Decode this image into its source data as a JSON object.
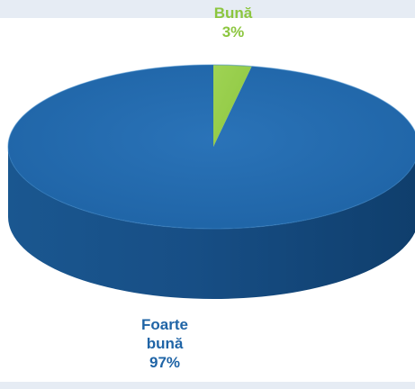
{
  "chart_data": {
    "type": "pie",
    "three_d": true,
    "title": "",
    "legend": "none",
    "slices": [
      {
        "category": "Bună",
        "value": 3,
        "percent_label": "3%",
        "color": "#8cc63f"
      },
      {
        "category": "Foarte bună",
        "value": 97,
        "percent_label": "97%",
        "color": "#1f64a6"
      }
    ]
  },
  "labels": {
    "good": {
      "lines": [
        "Bună",
        "3%"
      ]
    },
    "very_good": {
      "lines": [
        "Foarte",
        "bună",
        "97%"
      ]
    }
  },
  "colors": {
    "blue_top": "#1f64a6",
    "blue_side": "#174e85",
    "green": "#8cc63f",
    "label_green": "#8cc63f",
    "label_blue": "#1f64a6",
    "band": "#e6ecf4"
  }
}
